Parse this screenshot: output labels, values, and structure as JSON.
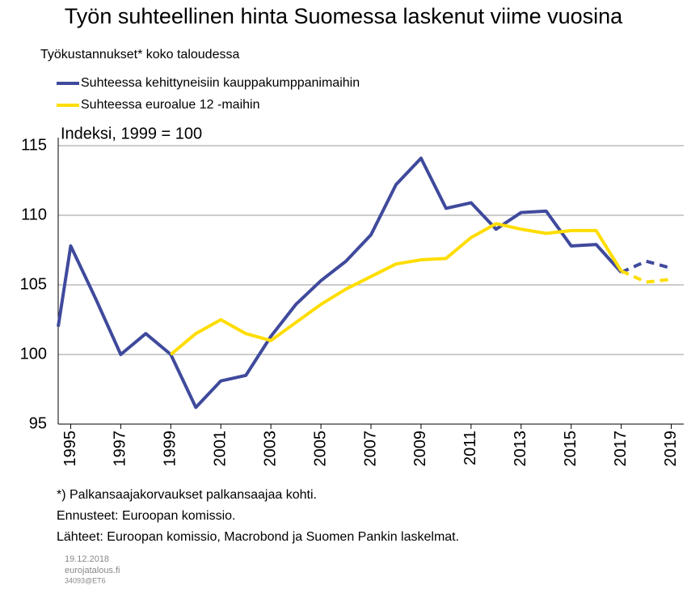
{
  "chart_data": {
    "type": "line",
    "title": "Työn suhteellinen hinta Suomessa laskenut viime vuosina",
    "subtitle": "Työkustannukset* koko taloudessa",
    "y_label": "Indeksi, 1999 = 100",
    "x": [
      1994.5,
      1995,
      1996,
      1997,
      1998,
      1999,
      2000,
      2001,
      2002,
      2003,
      2004,
      2005,
      2006,
      2007,
      2008,
      2009,
      2010,
      2011,
      2012,
      2013,
      2014,
      2015,
      2016,
      2017,
      2018,
      2019
    ],
    "series": [
      {
        "name": "Suhteessa kehittyneisiin kauppakumppanimaihin",
        "color": "#3f4a9c",
        "values": [
          102,
          107.8,
          104,
          100,
          101.5,
          100,
          96.2,
          98.1,
          98.5,
          101.3,
          103.6,
          105.3,
          106.7,
          108.6,
          112.2,
          114.1,
          110.5,
          110.9,
          109,
          110.2,
          110.3,
          107.8,
          107.9,
          105.9,
          106.7,
          106.2
        ]
      },
      {
        "name": "Suhteessa euroalue 12 -maihin",
        "color": "#ffdd00",
        "values": [
          null,
          null,
          null,
          null,
          null,
          100,
          101.5,
          102.5,
          101.5,
          101,
          102.3,
          103.6,
          104.7,
          105.6,
          106.5,
          106.8,
          106.9,
          108.4,
          109.4,
          109,
          108.7,
          108.9,
          108.9,
          106,
          105.2,
          105.4
        ]
      }
    ],
    "dashed_from_x": 2017,
    "xlim": [
      1994.5,
      2019.5
    ],
    "xticks": [
      1995,
      1997,
      1999,
      2001,
      2003,
      2005,
      2007,
      2009,
      2011,
      2013,
      2015,
      2017,
      2019
    ],
    "ylim": [
      95,
      115
    ],
    "yticks": [
      95,
      100,
      105,
      110,
      115
    ],
    "grid": true,
    "notes": [
      "*) Palkansaajakorvaukset palkansaajaa kohti.",
      "Ennusteet: Euroopan komissio.",
      "Lähteet: Euroopan komissio, Macrobond ja Suomen Pankin laskelmat."
    ],
    "footer": [
      "19.12.2018",
      "eurojatalous.fi",
      "34093@ET6"
    ]
  }
}
